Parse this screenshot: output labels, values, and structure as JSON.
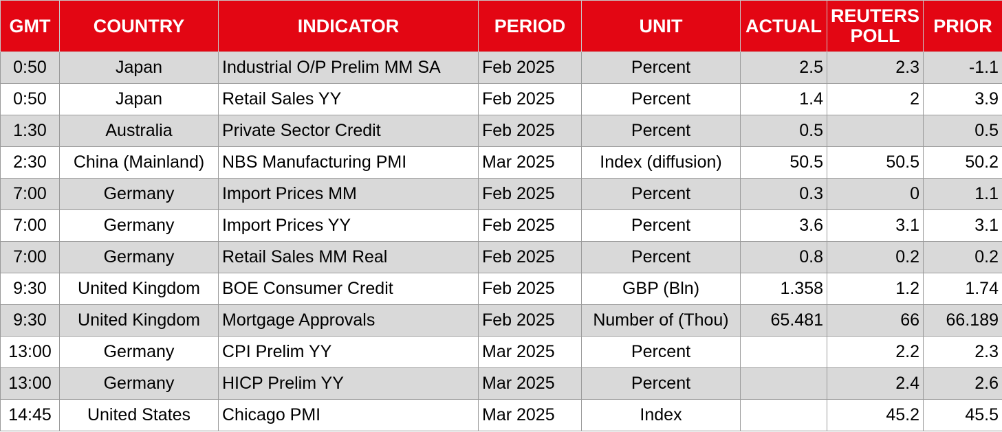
{
  "headers": {
    "gmt": "GMT",
    "country": "COUNTRY",
    "indicator": "INDICATOR",
    "period": "PERIOD",
    "unit": "UNIT",
    "actual": "ACTUAL",
    "poll": "REUTERS POLL",
    "prior": "PRIOR"
  },
  "colors": {
    "header_bg": "#e30613",
    "header_text": "#ffffff",
    "row_shade": "#d9d9d9",
    "row_plain": "#ffffff"
  },
  "rows": [
    {
      "gmt": "0:50",
      "country": "Japan",
      "indicator": "Industrial O/P Prelim MM SA",
      "period": "Feb 2025",
      "unit": "Percent",
      "actual": "2.5",
      "poll": "2.3",
      "prior": "-1.1"
    },
    {
      "gmt": "0:50",
      "country": "Japan",
      "indicator": "Retail Sales YY",
      "period": "Feb 2025",
      "unit": "Percent",
      "actual": "1.4",
      "poll": "2",
      "prior": "3.9"
    },
    {
      "gmt": "1:30",
      "country": "Australia",
      "indicator": "Private Sector Credit",
      "period": "Feb 2025",
      "unit": "Percent",
      "actual": "0.5",
      "poll": "",
      "prior": "0.5"
    },
    {
      "gmt": "2:30",
      "country": "China (Mainland)",
      "indicator": "NBS Manufacturing PMI",
      "period": "Mar 2025",
      "unit": "Index (diffusion)",
      "actual": "50.5",
      "poll": "50.5",
      "prior": "50.2"
    },
    {
      "gmt": "7:00",
      "country": "Germany",
      "indicator": "Import Prices MM",
      "period": "Feb 2025",
      "unit": "Percent",
      "actual": "0.3",
      "poll": "0",
      "prior": "1.1"
    },
    {
      "gmt": "7:00",
      "country": "Germany",
      "indicator": "Import Prices YY",
      "period": "Feb 2025",
      "unit": "Percent",
      "actual": "3.6",
      "poll": "3.1",
      "prior": "3.1"
    },
    {
      "gmt": "7:00",
      "country": "Germany",
      "indicator": "Retail Sales MM Real",
      "period": "Feb 2025",
      "unit": "Percent",
      "actual": "0.8",
      "poll": "0.2",
      "prior": "0.2"
    },
    {
      "gmt": "9:30",
      "country": "United Kingdom",
      "indicator": "BOE Consumer Credit",
      "period": "Feb 2025",
      "unit": "GBP (Bln)",
      "actual": "1.358",
      "poll": "1.2",
      "prior": "1.74"
    },
    {
      "gmt": "9:30",
      "country": "United Kingdom",
      "indicator": "Mortgage Approvals",
      "period": "Feb 2025",
      "unit": "Number of (Thou)",
      "actual": "65.481",
      "poll": "66",
      "prior": "66.189"
    },
    {
      "gmt": "13:00",
      "country": "Germany",
      "indicator": "CPI Prelim YY",
      "period": "Mar 2025",
      "unit": "Percent",
      "actual": "",
      "poll": "2.2",
      "prior": "2.3"
    },
    {
      "gmt": "13:00",
      "country": "Germany",
      "indicator": "HICP Prelim YY",
      "period": "Mar 2025",
      "unit": "Percent",
      "actual": "",
      "poll": "2.4",
      "prior": "2.6"
    },
    {
      "gmt": "14:45",
      "country": "United States",
      "indicator": "Chicago PMI",
      "period": "Mar 2025",
      "unit": "Index",
      "actual": "",
      "poll": "45.2",
      "prior": "45.5"
    }
  ]
}
